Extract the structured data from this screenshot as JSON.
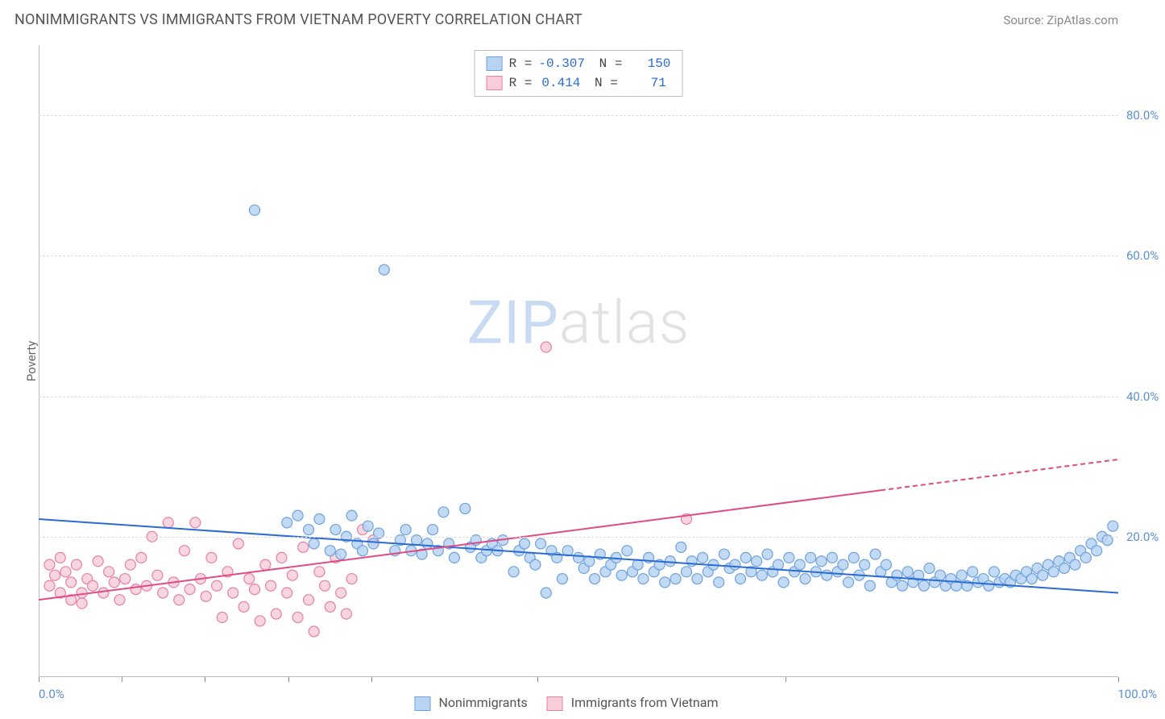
{
  "title": "NONIMMIGRANTS VS IMMIGRANTS FROM VIETNAM POVERTY CORRELATION CHART",
  "source": "Source: ZipAtlas.com",
  "ylabel": "Poverty",
  "chart": {
    "type": "scatter",
    "xlim": [
      0,
      100
    ],
    "ylim": [
      0,
      90
    ],
    "yticks": [
      20,
      40,
      60,
      80
    ],
    "ytick_labels": [
      "20.0%",
      "40.0%",
      "60.0%",
      "80.0%"
    ],
    "xticks": [
      0,
      100
    ],
    "xtick_labels": [
      "0.0%",
      "100.0%"
    ],
    "xtick_marks": [
      0,
      7.7,
      15.4,
      23.1,
      30.8,
      46.2,
      69.2,
      100
    ],
    "grid_color": "#dcdcdc",
    "background": "#ffffff",
    "marker_radius": 6.5,
    "marker_stroke_width": 1.2,
    "series": [
      {
        "name": "Nonimmigrants",
        "fill": "#b9d4f2",
        "stroke": "#6ea2dd",
        "R": "-0.307",
        "N": "150",
        "trend": {
          "x1": 0,
          "y1": 22.5,
          "x2": 100,
          "y2": 12,
          "color": "#2a6bd4",
          "width": 2,
          "dash": null,
          "dash_start": null
        },
        "points": [
          [
            20,
            66.5
          ],
          [
            32,
            58
          ],
          [
            23,
            22
          ],
          [
            24,
            23
          ],
          [
            25,
            21
          ],
          [
            25.5,
            19
          ],
          [
            26,
            22.5
          ],
          [
            27,
            18
          ],
          [
            27.5,
            21
          ],
          [
            28,
            17.5
          ],
          [
            28.5,
            20
          ],
          [
            29,
            23
          ],
          [
            29.5,
            19
          ],
          [
            30,
            18
          ],
          [
            30.5,
            21.5
          ],
          [
            31,
            19
          ],
          [
            31.5,
            20.5
          ],
          [
            33,
            18
          ],
          [
            33.5,
            19.5
          ],
          [
            34,
            21
          ],
          [
            34.5,
            18
          ],
          [
            35,
            19.5
          ],
          [
            35.5,
            17.5
          ],
          [
            36,
            19
          ],
          [
            36.5,
            21
          ],
          [
            37,
            18
          ],
          [
            37.5,
            23.5
          ],
          [
            38,
            19
          ],
          [
            38.5,
            17
          ],
          [
            39.5,
            24
          ],
          [
            40,
            18.5
          ],
          [
            40.5,
            19.5
          ],
          [
            41,
            17
          ],
          [
            41.5,
            18
          ],
          [
            42,
            19
          ],
          [
            42.5,
            18
          ],
          [
            43,
            19.5
          ],
          [
            44,
            15
          ],
          [
            44.5,
            18
          ],
          [
            45,
            19
          ],
          [
            45.5,
            17
          ],
          [
            46,
            16
          ],
          [
            46.5,
            19
          ],
          [
            47,
            12
          ],
          [
            47.5,
            18
          ],
          [
            48,
            17
          ],
          [
            48.5,
            14
          ],
          [
            49,
            18
          ],
          [
            50,
            17
          ],
          [
            50.5,
            15.5
          ],
          [
            51,
            16.5
          ],
          [
            51.5,
            14
          ],
          [
            52,
            17.5
          ],
          [
            52.5,
            15
          ],
          [
            53,
            16
          ],
          [
            53.5,
            17
          ],
          [
            54,
            14.5
          ],
          [
            54.5,
            18
          ],
          [
            55,
            15
          ],
          [
            55.5,
            16
          ],
          [
            56,
            14
          ],
          [
            56.5,
            17
          ],
          [
            57,
            15
          ],
          [
            57.5,
            16
          ],
          [
            58,
            13.5
          ],
          [
            58.5,
            16.5
          ],
          [
            59,
            14
          ],
          [
            59.5,
            18.5
          ],
          [
            60,
            15
          ],
          [
            60.5,
            16.5
          ],
          [
            61,
            14
          ],
          [
            61.5,
            17
          ],
          [
            62,
            15
          ],
          [
            62.5,
            16
          ],
          [
            63,
            13.5
          ],
          [
            63.5,
            17.5
          ],
          [
            64,
            15.5
          ],
          [
            64.5,
            16
          ],
          [
            65,
            14
          ],
          [
            65.5,
            17
          ],
          [
            66,
            15
          ],
          [
            66.5,
            16.5
          ],
          [
            67,
            14.5
          ],
          [
            67.5,
            17.5
          ],
          [
            68,
            15
          ],
          [
            68.5,
            16
          ],
          [
            69,
            13.5
          ],
          [
            69.5,
            17
          ],
          [
            70,
            15
          ],
          [
            70.5,
            16
          ],
          [
            71,
            14
          ],
          [
            71.5,
            17
          ],
          [
            72,
            15
          ],
          [
            72.5,
            16.5
          ],
          [
            73,
            14.5
          ],
          [
            73.5,
            17
          ],
          [
            74,
            15
          ],
          [
            74.5,
            16
          ],
          [
            75,
            13.5
          ],
          [
            75.5,
            17
          ],
          [
            76,
            14.5
          ],
          [
            76.5,
            16
          ],
          [
            77,
            13
          ],
          [
            77.5,
            17.5
          ],
          [
            78,
            15
          ],
          [
            78.5,
            16
          ],
          [
            79,
            13.5
          ],
          [
            79.5,
            14.5
          ],
          [
            80,
            13
          ],
          [
            80.5,
            15
          ],
          [
            81,
            13.5
          ],
          [
            81.5,
            14.5
          ],
          [
            82,
            13
          ],
          [
            82.5,
            15.5
          ],
          [
            83,
            13.5
          ],
          [
            83.5,
            14.5
          ],
          [
            84,
            13
          ],
          [
            84.5,
            14
          ],
          [
            85,
            13
          ],
          [
            85.5,
            14.5
          ],
          [
            86,
            13
          ],
          [
            86.5,
            15
          ],
          [
            87,
            13.5
          ],
          [
            87.5,
            14
          ],
          [
            88,
            13
          ],
          [
            88.5,
            15
          ],
          [
            89,
            13.5
          ],
          [
            89.5,
            14
          ],
          [
            90,
            13.5
          ],
          [
            90.5,
            14.5
          ],
          [
            91,
            14
          ],
          [
            91.5,
            15
          ],
          [
            92,
            14
          ],
          [
            92.5,
            15.5
          ],
          [
            93,
            14.5
          ],
          [
            93.5,
            16
          ],
          [
            94,
            15
          ],
          [
            94.5,
            16.5
          ],
          [
            95,
            15.5
          ],
          [
            95.5,
            17
          ],
          [
            96,
            16
          ],
          [
            96.5,
            18
          ],
          [
            97,
            17
          ],
          [
            97.5,
            19
          ],
          [
            98,
            18
          ],
          [
            98.5,
            20
          ],
          [
            99,
            19.5
          ],
          [
            99.5,
            21.5
          ]
        ]
      },
      {
        "name": "Immigrants from Vietnam",
        "fill": "#f7cfdb",
        "stroke": "#e87fa6",
        "R": "0.414",
        "N": "71",
        "trend": {
          "x1": 0,
          "y1": 11,
          "x2": 100,
          "y2": 31,
          "color": "#e14b84",
          "width": 2,
          "dash": "6,4",
          "dash_start": 78
        },
        "points": [
          [
            47,
            47
          ],
          [
            1,
            13
          ],
          [
            1.5,
            14.5
          ],
          [
            2,
            12
          ],
          [
            2.5,
            15
          ],
          [
            3,
            13.5
          ],
          [
            3.5,
            16
          ],
          [
            4,
            12
          ],
          [
            4.5,
            14
          ],
          [
            5,
            13
          ],
          [
            5.5,
            16.5
          ],
          [
            1,
            16
          ],
          [
            2,
            17
          ],
          [
            3,
            11
          ],
          [
            4,
            10.5
          ],
          [
            6,
            12
          ],
          [
            6.5,
            15
          ],
          [
            7,
            13.5
          ],
          [
            7.5,
            11
          ],
          [
            8,
            14
          ],
          [
            8.5,
            16
          ],
          [
            9,
            12.5
          ],
          [
            9.5,
            17
          ],
          [
            10,
            13
          ],
          [
            10.5,
            20
          ],
          [
            11,
            14.5
          ],
          [
            11.5,
            12
          ],
          [
            12,
            22
          ],
          [
            12.5,
            13.5
          ],
          [
            13,
            11
          ],
          [
            13.5,
            18
          ],
          [
            14,
            12.5
          ],
          [
            14.5,
            22
          ],
          [
            15,
            14
          ],
          [
            15.5,
            11.5
          ],
          [
            16,
            17
          ],
          [
            16.5,
            13
          ],
          [
            17,
            8.5
          ],
          [
            17.5,
            15
          ],
          [
            18,
            12
          ],
          [
            18.5,
            19
          ],
          [
            19,
            10
          ],
          [
            19.5,
            14
          ],
          [
            20,
            12.5
          ],
          [
            20.5,
            8
          ],
          [
            21,
            16
          ],
          [
            21.5,
            13
          ],
          [
            22,
            9
          ],
          [
            22.5,
            17
          ],
          [
            23,
            12
          ],
          [
            23.5,
            14.5
          ],
          [
            24,
            8.5
          ],
          [
            24.5,
            18.5
          ],
          [
            25,
            11
          ],
          [
            25.5,
            6.5
          ],
          [
            26,
            15
          ],
          [
            26.5,
            13
          ],
          [
            27,
            10
          ],
          [
            27.5,
            17
          ],
          [
            28,
            12
          ],
          [
            28.5,
            9
          ],
          [
            29,
            14
          ],
          [
            30,
            21
          ],
          [
            31,
            19.5
          ],
          [
            60,
            22.5
          ]
        ]
      }
    ]
  },
  "watermark": {
    "part1": "ZIP",
    "part2": "atlas"
  },
  "legend": [
    {
      "label": "Nonimmigrants",
      "fill": "#b9d4f2",
      "stroke": "#6ea2dd"
    },
    {
      "label": "Immigrants from Vietnam",
      "fill": "#f7cfdb",
      "stroke": "#e87fa6"
    }
  ]
}
